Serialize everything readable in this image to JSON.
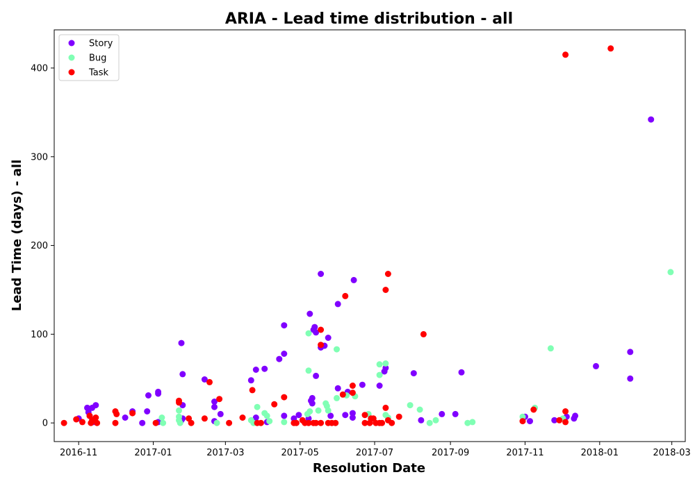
{
  "chart_data": {
    "type": "scatter",
    "title": "ARIA - Lead time distribution - all",
    "xlabel": "Resolution Date",
    "ylabel": "Lead Time (days) - all",
    "x_axis_type": "date",
    "xlim": [
      "2016-10-12",
      "2018-03-12"
    ],
    "ylim": [
      -21,
      443
    ],
    "x_ticks": [
      {
        "date": "2016-11-01",
        "label": "2016-11"
      },
      {
        "date": "2017-01-01",
        "label": "2017-01"
      },
      {
        "date": "2017-03-01",
        "label": "2017-03"
      },
      {
        "date": "2017-05-01",
        "label": "2017-05"
      },
      {
        "date": "2017-07-01",
        "label": "2017-07"
      },
      {
        "date": "2017-09-01",
        "label": "2017-09"
      },
      {
        "date": "2017-11-01",
        "label": "2017-11"
      },
      {
        "date": "2018-01-01",
        "label": "2018-01"
      },
      {
        "date": "2018-03-01",
        "label": "2018-03"
      }
    ],
    "y_ticks": [
      0,
      100,
      200,
      300,
      400
    ],
    "grid": false,
    "legend": {
      "position": "top-left"
    },
    "series": [
      {
        "name": "Story",
        "color": "#8000ff",
        "points": [
          [
            "2016-11-01",
            5
          ],
          [
            "2016-11-08",
            17
          ],
          [
            "2016-11-09",
            12
          ],
          [
            "2016-11-10",
            8
          ],
          [
            "2016-11-12",
            17
          ],
          [
            "2016-11-15",
            20
          ],
          [
            "2016-11-13",
            1
          ],
          [
            "2016-11-14",
            3
          ],
          [
            "2016-12-09",
            6
          ],
          [
            "2016-12-15",
            13
          ],
          [
            "2016-12-23",
            0
          ],
          [
            "2016-12-28",
            31
          ],
          [
            "2016-12-27",
            13
          ],
          [
            "2017-01-05",
            35
          ],
          [
            "2017-01-05",
            33
          ],
          [
            "2017-01-05",
            1
          ],
          [
            "2017-01-24",
            3
          ],
          [
            "2017-01-24",
            90
          ],
          [
            "2017-01-25",
            55
          ],
          [
            "2017-01-25",
            20
          ],
          [
            "2017-01-25",
            5
          ],
          [
            "2017-02-12",
            49
          ],
          [
            "2017-02-20",
            24
          ],
          [
            "2017-02-20",
            18
          ],
          [
            "2017-02-20",
            2
          ],
          [
            "2017-02-25",
            10
          ],
          [
            "2017-03-22",
            48
          ],
          [
            "2017-03-26",
            60
          ],
          [
            "2017-03-26",
            6
          ],
          [
            "2017-04-02",
            61
          ],
          [
            "2017-04-04",
            1
          ],
          [
            "2017-04-14",
            72
          ],
          [
            "2017-04-18",
            110
          ],
          [
            "2017-04-18",
            78
          ],
          [
            "2017-04-18",
            8
          ],
          [
            "2017-04-26",
            5
          ],
          [
            "2017-04-30",
            9
          ],
          [
            "2017-05-08",
            5
          ],
          [
            "2017-05-09",
            123
          ],
          [
            "2017-05-10",
            25
          ],
          [
            "2017-05-11",
            28
          ],
          [
            "2017-05-11",
            22
          ],
          [
            "2017-05-12",
            105
          ],
          [
            "2017-05-13",
            108
          ],
          [
            "2017-05-14",
            102
          ],
          [
            "2017-05-14",
            53
          ],
          [
            "2017-05-18",
            168
          ],
          [
            "2017-05-18",
            85
          ],
          [
            "2017-05-21",
            87
          ],
          [
            "2017-05-24",
            96
          ],
          [
            "2017-05-26",
            8
          ],
          [
            "2017-06-01",
            134
          ],
          [
            "2017-06-01",
            39
          ],
          [
            "2017-06-07",
            9
          ],
          [
            "2017-06-09",
            35
          ],
          [
            "2017-06-14",
            161
          ],
          [
            "2017-06-13",
            11
          ],
          [
            "2017-06-13",
            6
          ],
          [
            "2017-06-21",
            43
          ],
          [
            "2017-07-05",
            42
          ],
          [
            "2017-07-09",
            58
          ],
          [
            "2017-07-10",
            62
          ],
          [
            "2017-08-02",
            56
          ],
          [
            "2017-08-08",
            3
          ],
          [
            "2017-09-10",
            57
          ],
          [
            "2017-08-25",
            10
          ],
          [
            "2017-09-05",
            10
          ],
          [
            "2017-11-01",
            7
          ],
          [
            "2017-11-05",
            2
          ],
          [
            "2017-11-25",
            3
          ],
          [
            "2017-12-05",
            7
          ],
          [
            "2017-12-12",
            8
          ],
          [
            "2017-12-11",
            5
          ],
          [
            "2017-12-29",
            64
          ],
          [
            "2018-02-12",
            342
          ],
          [
            "2018-01-26",
            80
          ],
          [
            "2018-01-26",
            50
          ]
        ]
      },
      {
        "name": "Bug",
        "color": "#80ffb4",
        "points": [
          [
            "2017-01-22",
            14
          ],
          [
            "2017-01-22",
            7
          ],
          [
            "2017-01-22",
            3
          ],
          [
            "2017-01-23",
            0
          ],
          [
            "2017-01-08",
            6
          ],
          [
            "2017-01-09",
            0
          ],
          [
            "2017-02-22",
            0
          ],
          [
            "2017-03-22",
            3
          ],
          [
            "2017-03-24",
            0
          ],
          [
            "2017-03-27",
            18
          ],
          [
            "2017-04-02",
            11
          ],
          [
            "2017-04-04",
            8
          ],
          [
            "2017-04-06",
            2
          ],
          [
            "2017-04-18",
            1
          ],
          [
            "2017-05-08",
            101
          ],
          [
            "2017-05-08",
            59
          ],
          [
            "2017-05-07",
            10
          ],
          [
            "2017-05-09",
            13
          ],
          [
            "2017-05-16",
            14
          ],
          [
            "2017-05-22",
            22
          ],
          [
            "2017-05-23",
            19
          ],
          [
            "2017-05-24",
            14
          ],
          [
            "2017-05-30",
            0
          ],
          [
            "2017-05-31",
            83
          ],
          [
            "2017-05-31",
            28
          ],
          [
            "2017-06-08",
            31
          ],
          [
            "2017-06-15",
            30
          ],
          [
            "2017-06-26",
            10
          ],
          [
            "2017-07-05",
            66
          ],
          [
            "2017-07-05",
            54
          ],
          [
            "2017-07-10",
            67
          ],
          [
            "2017-07-10",
            9
          ],
          [
            "2017-07-12",
            6
          ],
          [
            "2017-07-30",
            20
          ],
          [
            "2017-08-07",
            15
          ],
          [
            "2017-08-15",
            0
          ],
          [
            "2017-08-20",
            3
          ],
          [
            "2017-09-15",
            0
          ],
          [
            "2017-09-19",
            1
          ],
          [
            "2017-10-30",
            7
          ],
          [
            "2017-11-09",
            17
          ],
          [
            "2017-11-22",
            84
          ],
          [
            "2017-12-02",
            5
          ],
          [
            "2018-02-28",
            170
          ]
        ]
      },
      {
        "name": "Task",
        "color": "#ff0000",
        "points": [
          [
            "2016-10-20",
            0
          ],
          [
            "2016-10-30",
            4
          ],
          [
            "2016-11-04",
            1
          ],
          [
            "2016-11-10",
            8
          ],
          [
            "2016-11-11",
            0
          ],
          [
            "2016-11-12",
            3
          ],
          [
            "2016-11-15",
            6
          ],
          [
            "2016-11-16",
            0
          ],
          [
            "2016-12-01",
            13
          ],
          [
            "2016-12-02",
            10
          ],
          [
            "2016-12-01",
            0
          ],
          [
            "2016-12-15",
            11
          ],
          [
            "2017-01-03",
            0
          ],
          [
            "2017-01-22",
            25
          ],
          [
            "2017-01-22",
            23
          ],
          [
            "2017-01-30",
            5
          ],
          [
            "2017-02-01",
            0
          ],
          [
            "2017-02-12",
            5
          ],
          [
            "2017-02-16",
            46
          ],
          [
            "2017-02-24",
            27
          ],
          [
            "2017-03-04",
            0
          ],
          [
            "2017-03-15",
            6
          ],
          [
            "2017-03-23",
            37
          ],
          [
            "2017-03-27",
            0
          ],
          [
            "2017-03-30",
            0
          ],
          [
            "2017-04-10",
            21
          ],
          [
            "2017-04-18",
            29
          ],
          [
            "2017-04-26",
            0
          ],
          [
            "2017-04-28",
            0
          ],
          [
            "2017-05-03",
            3
          ],
          [
            "2017-05-05",
            0
          ],
          [
            "2017-05-08",
            0
          ],
          [
            "2017-05-12",
            0
          ],
          [
            "2017-05-14",
            0
          ],
          [
            "2017-05-18",
            105
          ],
          [
            "2017-05-18",
            88
          ],
          [
            "2017-05-18",
            0
          ],
          [
            "2017-05-24",
            0
          ],
          [
            "2017-05-27",
            0
          ],
          [
            "2017-05-30",
            0
          ],
          [
            "2017-06-05",
            32
          ],
          [
            "2017-06-07",
            143
          ],
          [
            "2017-06-13",
            42
          ],
          [
            "2017-06-13",
            34
          ],
          [
            "2017-06-23",
            9
          ],
          [
            "2017-06-23",
            0
          ],
          [
            "2017-06-27",
            0
          ],
          [
            "2017-06-28",
            5
          ],
          [
            "2017-06-30",
            5
          ],
          [
            "2017-07-02",
            0
          ],
          [
            "2017-07-05",
            0
          ],
          [
            "2017-07-07",
            0
          ],
          [
            "2017-07-10",
            150
          ],
          [
            "2017-07-12",
            168
          ],
          [
            "2017-07-10",
            17
          ],
          [
            "2017-07-12",
            3
          ],
          [
            "2017-07-15",
            0
          ],
          [
            "2017-07-21",
            7
          ],
          [
            "2017-08-10",
            100
          ],
          [
            "2017-10-30",
            2
          ],
          [
            "2017-11-08",
            15
          ],
          [
            "2017-11-29",
            3
          ],
          [
            "2017-12-04",
            415
          ],
          [
            "2017-12-04",
            13
          ],
          [
            "2017-12-04",
            1
          ],
          [
            "2018-01-10",
            422
          ]
        ]
      }
    ]
  }
}
